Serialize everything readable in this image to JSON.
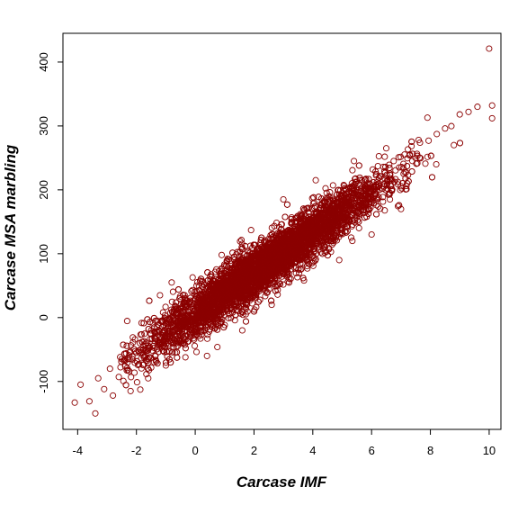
{
  "chart_data": {
    "type": "scatter",
    "title": "",
    "xlabel": "Carcase IMF",
    "ylabel": "Carcase MSA marbling",
    "xlim": [
      -4.5,
      10.4
    ],
    "ylim": [
      -175,
      445
    ],
    "x_ticks": [
      -4,
      -2,
      0,
      2,
      4,
      6,
      8,
      10
    ],
    "y_ticks": [
      -100,
      0,
      100,
      200,
      300,
      400
    ],
    "x_tick_labels": [
      "-4",
      "-2",
      "0",
      "2",
      "4",
      "6",
      "8",
      "10"
    ],
    "y_tick_labels": [
      "-100",
      "0",
      "100",
      "200",
      "300",
      "400"
    ],
    "marker_color": "#8B0000",
    "marker": "open-circle",
    "grid": false,
    "legend": "none",
    "trend": {
      "slope": 32,
      "intercept": 5
    },
    "points": [
      {
        "x": -4.1,
        "y": -133
      },
      {
        "x": -3.9,
        "y": -105
      },
      {
        "x": -3.6,
        "y": -131
      },
      {
        "x": -3.4,
        "y": -150
      },
      {
        "x": -3.3,
        "y": -95
      },
      {
        "x": -3.1,
        "y": -112
      },
      {
        "x": -2.9,
        "y": -80
      },
      {
        "x": -2.8,
        "y": -122
      },
      {
        "x": -2.6,
        "y": -93
      },
      {
        "x": -2.5,
        "y": -65
      },
      {
        "x": -2.3,
        "y": -70
      },
      {
        "x": -2.2,
        "y": -115
      },
      {
        "x": -2.0,
        "y": -55
      },
      {
        "x": -1.8,
        "y": -38
      },
      {
        "x": -1.6,
        "y": -95
      },
      {
        "x": -1.5,
        "y": -20
      },
      {
        "x": -1.2,
        "y": 35
      },
      {
        "x": -1.0,
        "y": -75
      },
      {
        "x": -0.8,
        "y": 55
      },
      {
        "x": 0.4,
        "y": -60
      },
      {
        "x": 0.9,
        "y": 98
      },
      {
        "x": 1.6,
        "y": -20
      },
      {
        "x": 1.9,
        "y": 137
      },
      {
        "x": 2.6,
        "y": 20
      },
      {
        "x": 3.0,
        "y": 185
      },
      {
        "x": 3.7,
        "y": 58
      },
      {
        "x": 4.1,
        "y": 215
      },
      {
        "x": 4.9,
        "y": 90
      },
      {
        "x": 5.4,
        "y": 245
      },
      {
        "x": 6.0,
        "y": 130
      },
      {
        "x": 6.5,
        "y": 265
      },
      {
        "x": 7.0,
        "y": 170
      },
      {
        "x": 7.3,
        "y": 255
      },
      {
        "x": 7.6,
        "y": 278
      },
      {
        "x": 7.9,
        "y": 313
      },
      {
        "x": 8.2,
        "y": 240
      },
      {
        "x": 8.5,
        "y": 296
      },
      {
        "x": 8.8,
        "y": 270
      },
      {
        "x": 9.0,
        "y": 318
      },
      {
        "x": 9.3,
        "y": 322
      },
      {
        "x": 9.6,
        "y": 330
      },
      {
        "x": 10.0,
        "y": 421
      },
      {
        "x": 10.1,
        "y": 332
      },
      {
        "x": 10.1,
        "y": 312
      }
    ]
  }
}
